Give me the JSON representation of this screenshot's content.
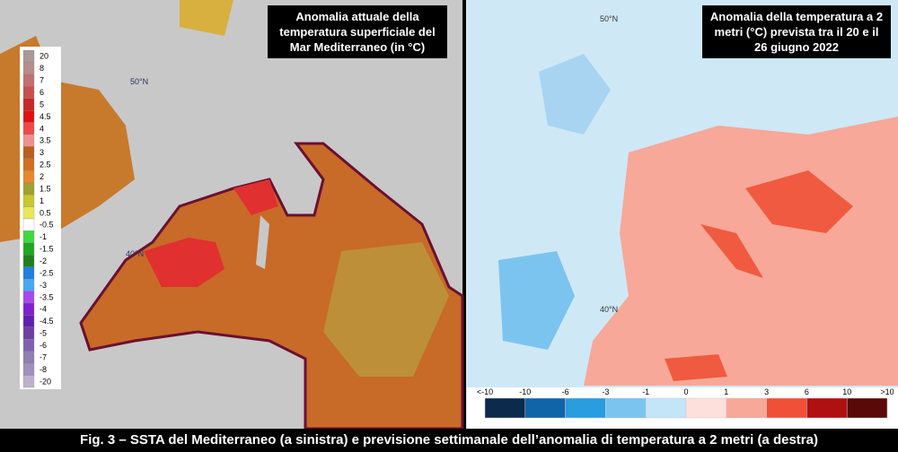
{
  "left_panel": {
    "title": "Anomalia attuale della temperatura superficiale del Mar Mediterraneo (in °C)",
    "legend": [
      {
        "label": "20",
        "color": "#a89898"
      },
      {
        "label": "8",
        "color": "#b88c8c"
      },
      {
        "label": "7",
        "color": "#c07070"
      },
      {
        "label": "6",
        "color": "#c85050"
      },
      {
        "label": "5",
        "color": "#c82828"
      },
      {
        "label": "4.5",
        "color": "#e01010"
      },
      {
        "label": "4",
        "color": "#f04848"
      },
      {
        "label": "3.5",
        "color": "#f09090"
      },
      {
        "label": "3",
        "color": "#b86020"
      },
      {
        "label": "2.5",
        "color": "#d07020"
      },
      {
        "label": "2",
        "color": "#e8882c"
      },
      {
        "label": "1.5",
        "color": "#a0a030"
      },
      {
        "label": "1",
        "color": "#c8c830"
      },
      {
        "label": "0.5",
        "color": "#e8e858"
      },
      {
        "label": "-0.5",
        "color": "#ffffff"
      },
      {
        "label": "-1",
        "color": "#40d840"
      },
      {
        "label": "-1.5",
        "color": "#20a820"
      },
      {
        "label": "-2",
        "color": "#208020"
      },
      {
        "label": "-2.5",
        "color": "#2080e0"
      },
      {
        "label": "-3",
        "color": "#48a8f0"
      },
      {
        "label": "-3.5",
        "color": "#a848f0"
      },
      {
        "label": "-4",
        "color": "#8020d0"
      },
      {
        "label": "-4.5",
        "color": "#6020b0"
      },
      {
        "label": "-5",
        "color": "#7040a0"
      },
      {
        "label": "-6",
        "color": "#8060b0"
      },
      {
        "label": "-7",
        "color": "#9080b0"
      },
      {
        "label": "-8",
        "color": "#a090c0"
      },
      {
        "label": "-20",
        "color": "#c0b0d0"
      }
    ],
    "lat_labels": [
      "50°N",
      "40°N"
    ]
  },
  "right_panel": {
    "title": "Anomalia della temperatura a 2 metri (°C) prevista tra il 20 e il 26 giugno 2022",
    "legend_labels": [
      "<-10",
      "-10",
      "-6",
      "-3",
      "-1",
      "0",
      "1",
      "3",
      "6",
      "10",
      ">10"
    ],
    "legend_colors": [
      "#0c2a4c",
      "#1064a8",
      "#2a9ce0",
      "#7cc4f0",
      "#c4e4f8",
      "#fde0dc",
      "#f8a898",
      "#f05038",
      "#b01010",
      "#5a0808"
    ],
    "lat_labels": [
      "50°N",
      "40°N"
    ]
  },
  "caption": "Fig. 3 – SSTA del Mediterraneo (a sinistra) e previsione settimanale dell’anomalia di temperatura a 2 metri (a destra)"
}
